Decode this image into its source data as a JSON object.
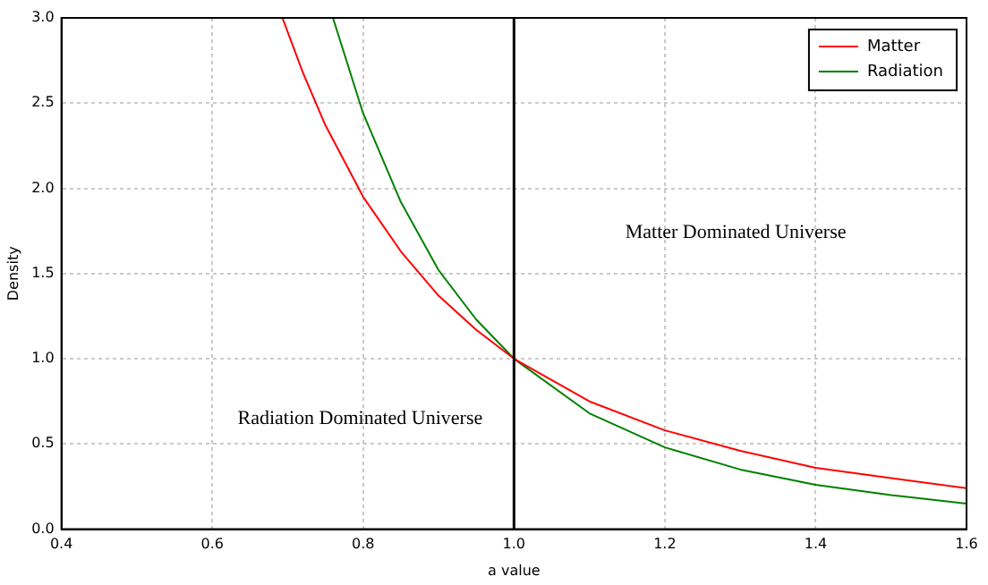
{
  "chart_data": {
    "type": "line",
    "xlabel": "a value",
    "ylabel": "Density",
    "series": [
      {
        "name": "Matter",
        "color": "#ff0000",
        "x": [
          0.693,
          0.72,
          0.75,
          0.8,
          0.85,
          0.9,
          0.95,
          1.0,
          1.1,
          1.2,
          1.3,
          1.4,
          1.5,
          1.6
        ],
        "values": [
          3.0,
          2.68,
          2.37,
          1.95,
          1.63,
          1.37,
          1.17,
          1.0,
          0.75,
          0.58,
          0.46,
          0.36,
          0.3,
          0.24
        ]
      },
      {
        "name": "Radiation",
        "color": "#008000",
        "x": [
          0.76,
          0.8,
          0.85,
          0.9,
          0.95,
          1.0,
          1.1,
          1.2,
          1.3,
          1.4,
          1.5,
          1.6
        ],
        "values": [
          3.0,
          2.44,
          1.92,
          1.52,
          1.23,
          1.0,
          0.68,
          0.48,
          0.35,
          0.26,
          0.2,
          0.15
        ]
      }
    ],
    "xlim": [
      0.4,
      1.6
    ],
    "xticks": [
      0.4,
      0.6,
      0.8,
      {
        "value": 1.0,
        "label": "1.0"
      },
      1.2,
      1.4,
      1.6
    ],
    "ylim": [
      0,
      3
    ],
    "yticks": [
      {
        "value": 0,
        "label": "0.0"
      },
      0.5,
      {
        "value": 1.0,
        "label": "1.0"
      },
      1.5,
      {
        "value": 2.0,
        "label": "2.0"
      },
      2.5,
      {
        "value": 3.0,
        "label": "3.0"
      }
    ],
    "ref_lines": [
      {
        "axis": "x",
        "value": 1.0,
        "color": "#000000"
      }
    ],
    "annotations": [
      "Matter Dominated Universe",
      "Radiation Dominated Universe"
    ],
    "grid": true,
    "legend": "top right",
    "marker": "none",
    "line_style": "solid"
  }
}
